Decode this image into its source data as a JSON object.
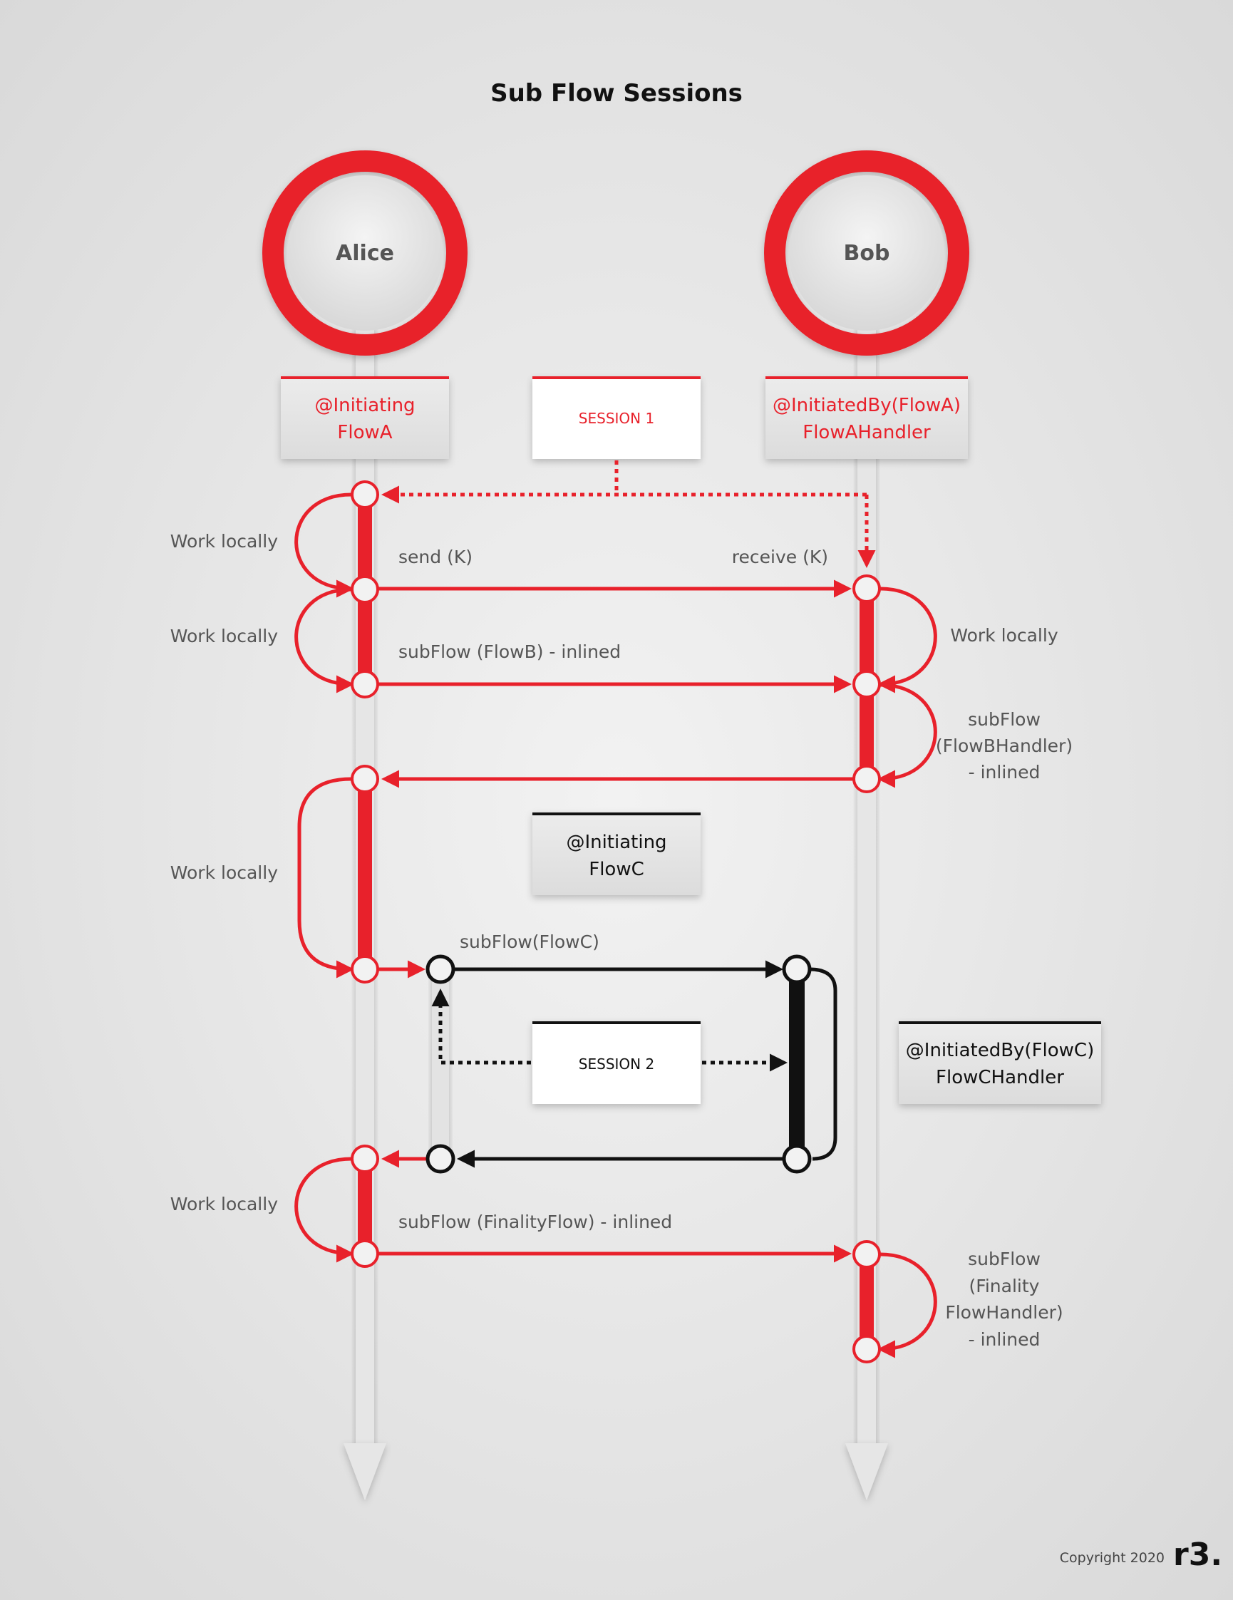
{
  "title": "Sub Flow Sessions",
  "actors": {
    "alice": "Alice",
    "bob": "Bob"
  },
  "boxes": {
    "alice_initiating": {
      "line1": "@Initiating",
      "line2": "FlowA"
    },
    "session1": "SESSION 1",
    "bob_initiated": {
      "line1": "@InitiatedBy(FlowA)",
      "line2": "FlowAHandler"
    },
    "flowc_initiating": {
      "line1": "@Initiating",
      "line2": "FlowC"
    },
    "session2": "SESSION 2",
    "flowc_handler": {
      "line1": "@InitiatedBy(FlowC)",
      "line2": "FlowCHandler"
    }
  },
  "messages": {
    "send": "send (K)",
    "receive": "receive (K)",
    "subflow_b": "subFlow (FlowB) - inlined",
    "subflow_c": "subFlow(FlowC)",
    "subflow_finality": "subFlow (FinalityFlow) - inlined"
  },
  "alice_notes": [
    "Work locally",
    "Work locally",
    "Work locally",
    "Work locally"
  ],
  "bob_notes": {
    "work_locally": "Work locally",
    "subflow_b_handler": [
      "subFlow",
      "(FlowBHandler)",
      "- inlined"
    ],
    "subflow_finality_handler": [
      "subFlow",
      "(Finality",
      "FlowHandler)",
      "- inlined"
    ]
  },
  "footer": {
    "copyright": "Copyright 2020",
    "logo": "r3."
  },
  "colors": {
    "accent_red": "#e8212b",
    "black": "#111111",
    "lifeline": "#e6e6e6"
  }
}
